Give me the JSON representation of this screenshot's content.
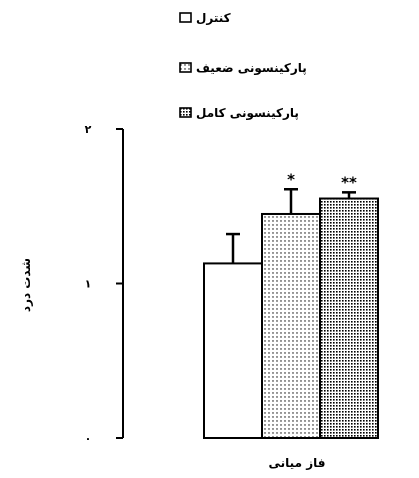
{
  "chart_data": {
    "type": "bar",
    "ylabel": "شدت درد",
    "xlabel": "فاز میانی",
    "ylim": [
      0,
      2
    ],
    "yticks": [
      {
        "value": 0,
        "label": "۰"
      },
      {
        "value": 1,
        "label": "۱"
      },
      {
        "value": 2,
        "label": "۲"
      }
    ],
    "grid": false,
    "legend_position": "top-right",
    "series": [
      {
        "name": "کنترل",
        "value": 1.13,
        "error": 0.19,
        "pattern": "solid-white",
        "annotation": ""
      },
      {
        "name": "پارکینسونی ضعیف",
        "value": 1.45,
        "error": 0.16,
        "pattern": "dots",
        "annotation": "*"
      },
      {
        "name": "پارکینسونی کامل",
        "value": 1.55,
        "error": 0.04,
        "pattern": "dense-dots",
        "annotation": "**"
      }
    ]
  }
}
